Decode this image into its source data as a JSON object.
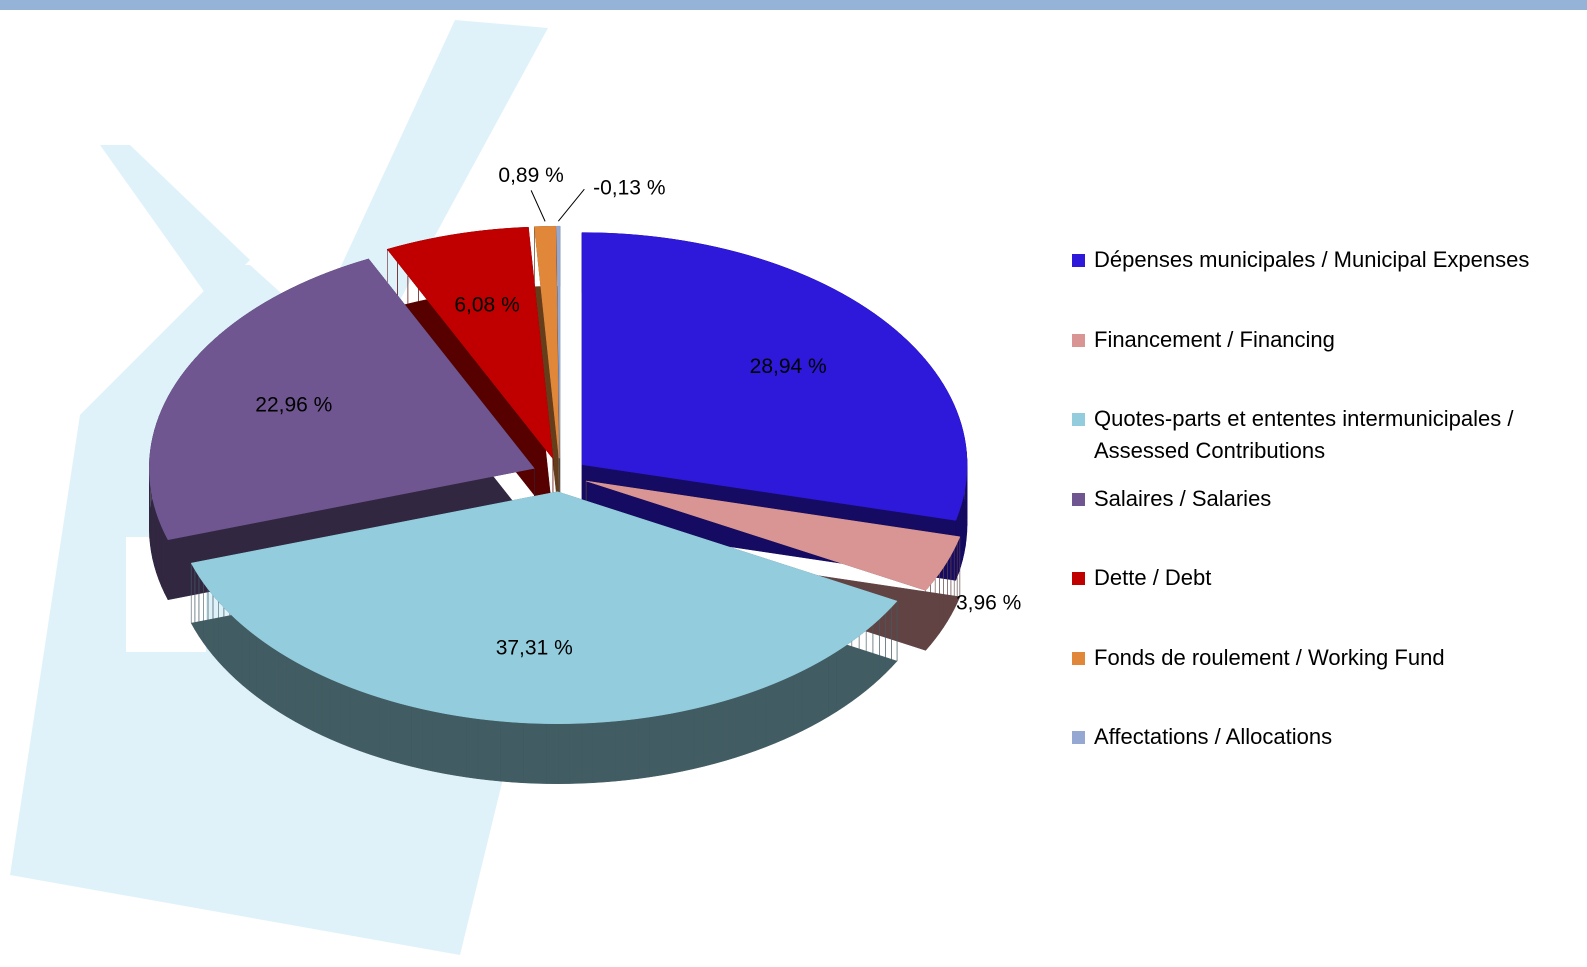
{
  "chart_data": {
    "type": "pie",
    "categories": [
      "Dépenses municipales / Municipal Expenses",
      "Financement / Financing",
      "Quotes-parts et ententes intermunicipales / Assessed Contributions",
      "Salaires / Salaries",
      "Dette / Debt",
      "Fonds de roulement / Working Fund",
      "Affectations / Allocations"
    ],
    "values": [
      28.94,
      3.96,
      37.31,
      22.96,
      6.08,
      0.89,
      -0.13
    ],
    "value_labels": [
      "28,94 %",
      "3,96 %",
      "37,31 %",
      "22,96 %",
      "6,08 %",
      "0,89 %",
      "-0,13 %"
    ],
    "colors": [
      "#2e18d9",
      "#d99594",
      "#93cddd",
      "#6f5690",
      "#c00000",
      "#e0873a",
      "#95a8d2"
    ],
    "legend": "right"
  }
}
